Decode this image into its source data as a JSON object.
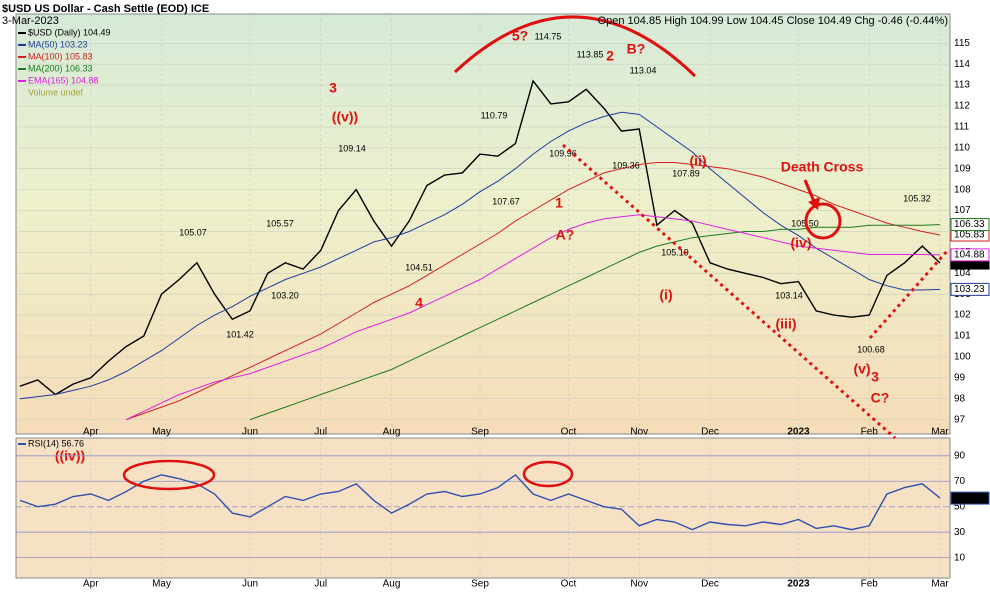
{
  "chart_data": [
    {
      "type": "line",
      "title": "$USD US Dollar - Cash Settle (EOD) ICE",
      "subtitle": "3-Mar-2023",
      "quote": "Open 104.85 High 104.99 Low 104.45 Close 104.49 Chg -0.46 (-0.44%)",
      "volume_legend": "Volume undef",
      "categories": [
        null,
        null,
        null,
        null,
        "Apr",
        null,
        null,
        null,
        "May",
        null,
        null,
        null,
        null,
        "Jun",
        null,
        null,
        null,
        "Jul",
        null,
        null,
        null,
        "Aug",
        null,
        null,
        null,
        null,
        "Sep",
        null,
        null,
        null,
        null,
        "Oct",
        null,
        null,
        null,
        "Nov",
        null,
        null,
        null,
        "Dec",
        null,
        null,
        null,
        null,
        "2023",
        null,
        null,
        null,
        "Feb",
        null,
        null,
        null,
        "Mar"
      ],
      "series": [
        {
          "name": "$USD (Daily) 104.49",
          "color": "#000000",
          "values": [
            98.6,
            98.9,
            98.2,
            98.7,
            99.0,
            99.8,
            100.5,
            101.0,
            103.0,
            103.7,
            104.5,
            103.0,
            101.8,
            102.2,
            104.0,
            104.5,
            104.2,
            105.1,
            107.0,
            108.0,
            106.5,
            105.3,
            106.5,
            108.2,
            108.7,
            108.8,
            109.7,
            109.6,
            110.2,
            113.2,
            112.1,
            112.2,
            112.8,
            111.9,
            110.8,
            110.9,
            106.3,
            107.0,
            106.4,
            104.5,
            104.2,
            104.0,
            103.8,
            103.5,
            103.6,
            102.2,
            102.0,
            101.9,
            102.0,
            103.9,
            104.5,
            105.3,
            104.49
          ]
        },
        {
          "name": "MA(50) 103.23",
          "color": "#1f3c9c",
          "values": [
            98.0,
            98.1,
            98.2,
            98.4,
            98.6,
            98.9,
            99.3,
            99.8,
            100.3,
            100.9,
            101.5,
            102.0,
            102.4,
            102.9,
            103.3,
            103.7,
            104.0,
            104.3,
            104.7,
            105.1,
            105.5,
            105.7,
            106.0,
            106.4,
            106.8,
            107.3,
            107.9,
            108.4,
            109.0,
            109.7,
            110.3,
            110.8,
            111.2,
            111.5,
            111.7,
            111.6,
            111.0,
            110.4,
            109.8,
            109.0,
            108.3,
            107.6,
            106.9,
            106.3,
            105.8,
            105.2,
            104.7,
            104.2,
            103.7,
            103.4,
            103.2,
            103.2,
            103.23
          ]
        },
        {
          "name": "MA(100) 105.83",
          "color": "#d42020",
          "values": [
            null,
            null,
            null,
            null,
            null,
            null,
            97.0,
            97.3,
            97.6,
            97.9,
            98.3,
            98.7,
            99.1,
            99.5,
            99.9,
            100.3,
            100.7,
            101.1,
            101.6,
            102.1,
            102.6,
            103.0,
            103.4,
            103.9,
            104.4,
            104.9,
            105.4,
            105.9,
            106.5,
            107.0,
            107.5,
            108.0,
            108.4,
            108.8,
            109.0,
            109.2,
            109.3,
            109.3,
            109.2,
            109.1,
            109.0,
            108.8,
            108.6,
            108.3,
            108.0,
            107.7,
            107.3,
            107.0,
            106.7,
            106.4,
            106.2,
            106.0,
            105.83
          ]
        },
        {
          "name": "MA(200) 106.33",
          "color": "#1e7a1e",
          "values": [
            null,
            null,
            null,
            null,
            null,
            null,
            null,
            null,
            null,
            null,
            null,
            null,
            null,
            97.0,
            97.3,
            97.6,
            97.9,
            98.2,
            98.5,
            98.8,
            99.1,
            99.4,
            99.8,
            100.2,
            100.6,
            101.0,
            101.4,
            101.8,
            102.2,
            102.6,
            103.0,
            103.4,
            103.8,
            104.2,
            104.6,
            105.0,
            105.3,
            105.5,
            105.7,
            105.8,
            105.9,
            106.0,
            106.0,
            106.1,
            106.1,
            106.2,
            106.2,
            106.2,
            106.3,
            106.3,
            106.3,
            106.3,
            106.33
          ]
        },
        {
          "name": "EMA(165) 104.88",
          "color": "#e020e0",
          "values": [
            null,
            null,
            null,
            null,
            null,
            null,
            97.0,
            97.4,
            97.8,
            98.2,
            98.5,
            98.8,
            99.0,
            99.2,
            99.5,
            99.8,
            100.1,
            100.4,
            100.8,
            101.2,
            101.5,
            101.8,
            102.1,
            102.5,
            102.9,
            103.3,
            103.7,
            104.2,
            104.7,
            105.2,
            105.7,
            106.1,
            106.4,
            106.6,
            106.7,
            106.8,
            106.7,
            106.6,
            106.5,
            106.3,
            106.1,
            105.9,
            105.7,
            105.5,
            105.3,
            105.2,
            105.1,
            105.0,
            104.9,
            104.9,
            104.9,
            104.9,
            104.88
          ]
        }
      ],
      "ylim": [
        96.6,
        116.4
      ],
      "yticks": [
        97,
        98,
        99,
        100,
        101,
        102,
        103,
        104,
        105,
        106,
        107,
        108,
        109,
        110,
        111,
        112,
        113,
        114,
        115
      ],
      "grid": true,
      "annotations": [
        "5?",
        "114.75",
        "113.85",
        "2",
        "B?",
        "113.04",
        "3",
        "((v))",
        "109.14",
        "110.79",
        "107.67",
        "109.96",
        "109.36",
        "107.89",
        "(ii)",
        "1",
        "A?",
        "105.07",
        "105.57",
        "103.20",
        "101.42",
        "104.51",
        "4",
        "105.19",
        "(i)",
        "(iii)",
        "103.14",
        "Death Cross",
        "105.50",
        "(iv)",
        "105.32",
        "100.68",
        "(v)",
        "3",
        "C?",
        "((iv))"
      ]
    },
    {
      "type": "line",
      "categories": [
        null,
        null,
        null,
        null,
        "Apr",
        null,
        null,
        null,
        "May",
        null,
        null,
        null,
        null,
        "Jun",
        null,
        null,
        null,
        "Jul",
        null,
        null,
        null,
        "Aug",
        null,
        null,
        null,
        null,
        "Sep",
        null,
        null,
        null,
        null,
        "Oct",
        null,
        null,
        null,
        "Nov",
        null,
        null,
        null,
        "Dec",
        null,
        null,
        null,
        null,
        "2023",
        null,
        null,
        null,
        "Feb",
        null,
        null,
        null,
        "Mar"
      ],
      "series": [
        {
          "name": "RSI(14) 56.76",
          "color": "#3050b0",
          "values": [
            55,
            50,
            52,
            58,
            60,
            55,
            62,
            70,
            75,
            72,
            68,
            60,
            45,
            42,
            50,
            58,
            55,
            60,
            62,
            68,
            55,
            45,
            52,
            60,
            62,
            58,
            60,
            65,
            75,
            60,
            55,
            60,
            55,
            50,
            48,
            35,
            40,
            38,
            32,
            38,
            36,
            35,
            38,
            36,
            40,
            33,
            35,
            32,
            35,
            60,
            65,
            68,
            56.76
          ]
        }
      ],
      "ylim": [
        -6,
        104
      ],
      "yticks": [
        10,
        30,
        50,
        70,
        90
      ],
      "grid": true
    }
  ]
}
